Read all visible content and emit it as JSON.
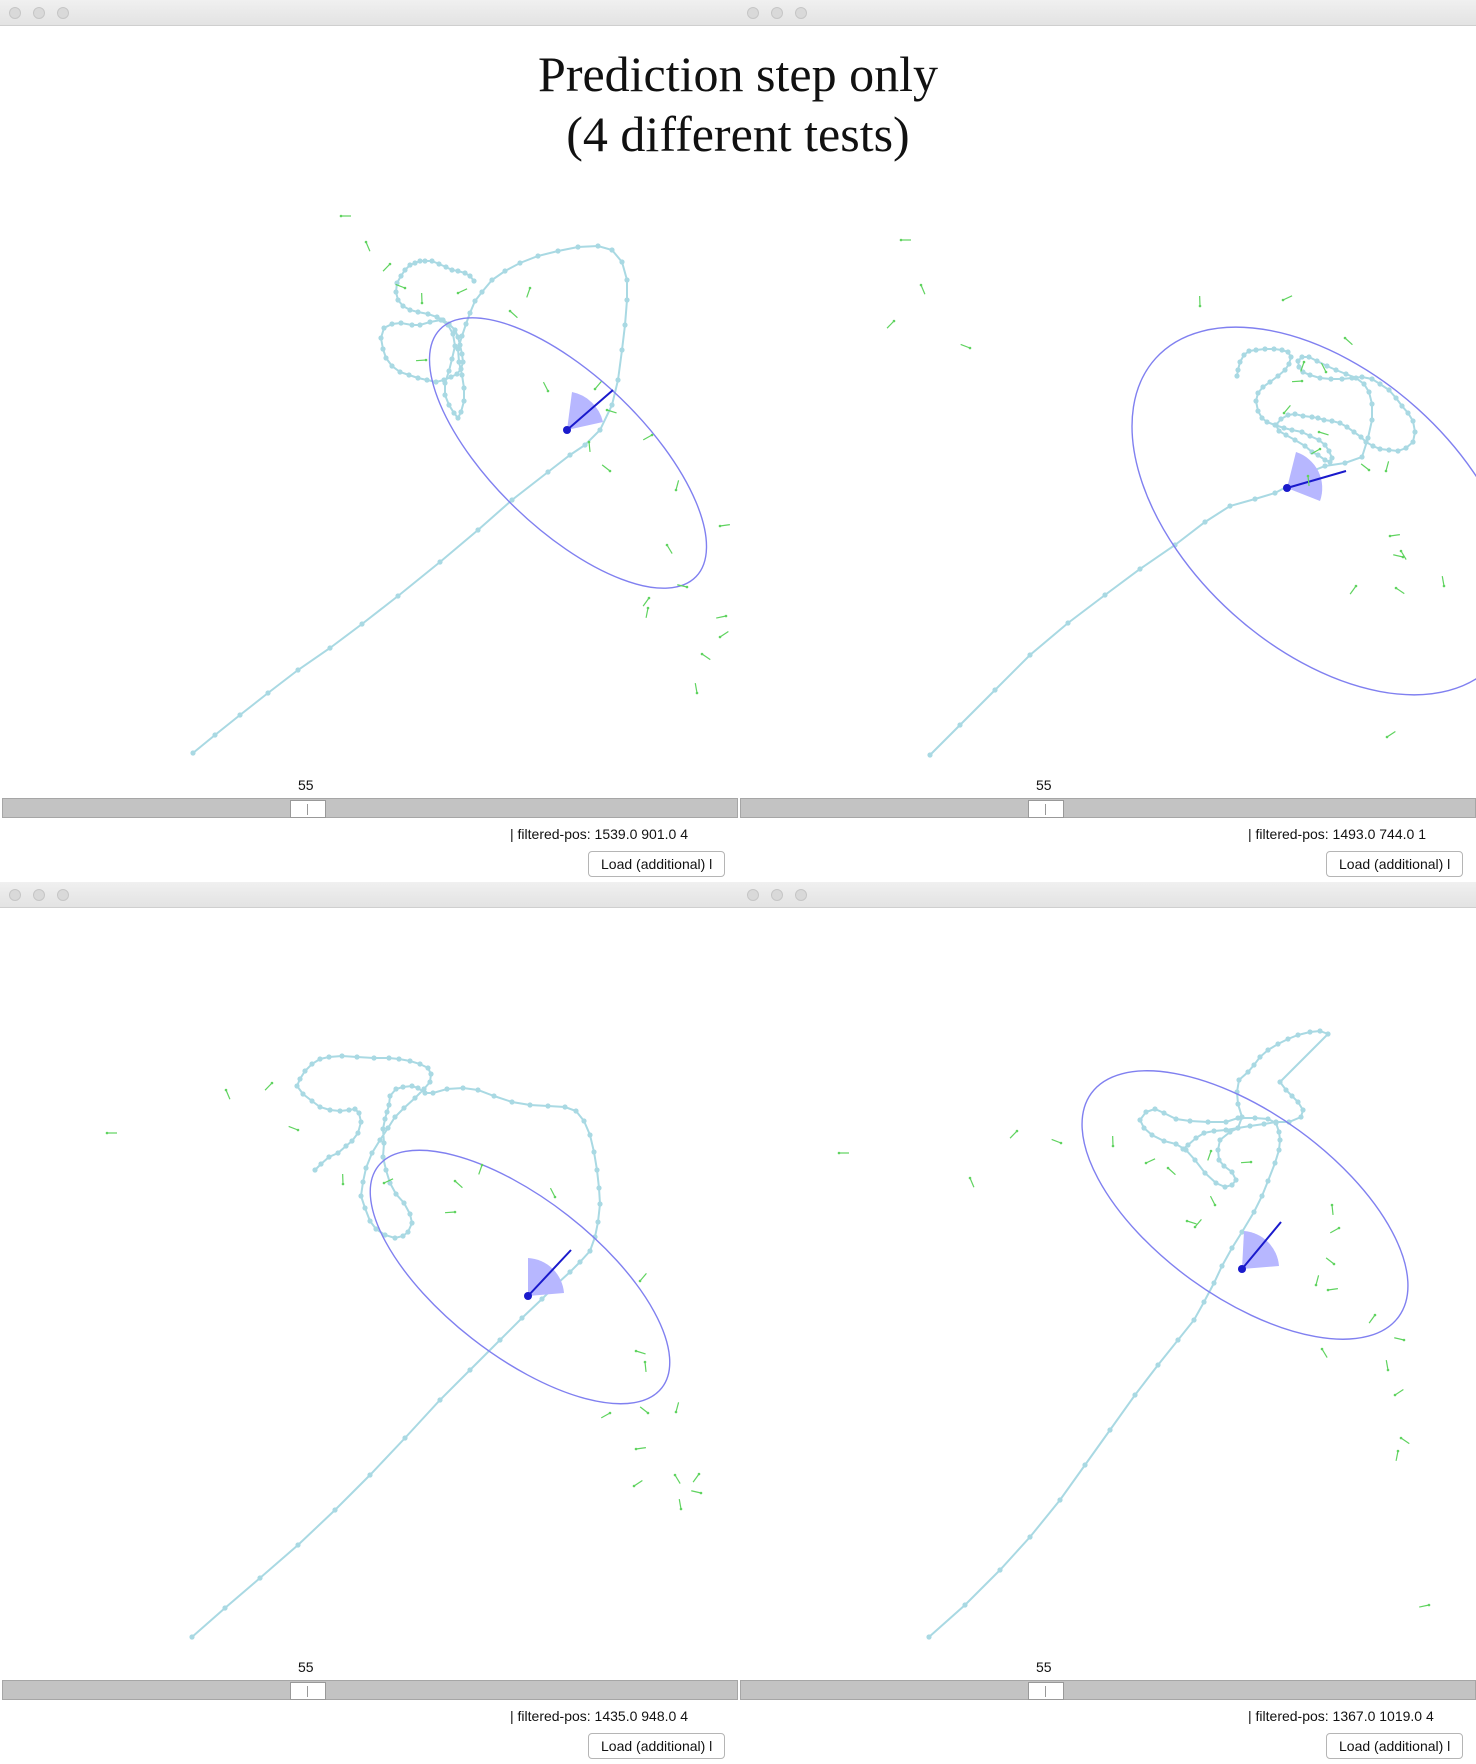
{
  "title": {
    "line1": "Prediction step only",
    "line2": "(4 different tests)"
  },
  "colors": {
    "trajectory": "#a9d9e3",
    "ellipse": "#8080f0",
    "wedge": "#b7b7ff",
    "heading": "#1a1acc",
    "particles": "#5fd35f"
  },
  "windows": [
    {
      "slider": {
        "value": "55"
      },
      "status_text": "| filtered-pos: 1539.0 901.0 4",
      "load_label": "Load (additional) l"
    },
    {
      "slider": {
        "value": "55"
      },
      "status_text": "| filtered-pos: 1493.0 744.0 1",
      "load_label": "Load (additional) l"
    },
    {
      "slider": {
        "value": "55"
      },
      "status_text": "| filtered-pos: 1435.0 948.0 4",
      "load_label": "Load (additional) l"
    },
    {
      "slider": {
        "value": "55"
      },
      "status_text": "| filtered-pos: 1367.0 1019.0 4",
      "load_label": "Load (additional) l"
    }
  ]
}
